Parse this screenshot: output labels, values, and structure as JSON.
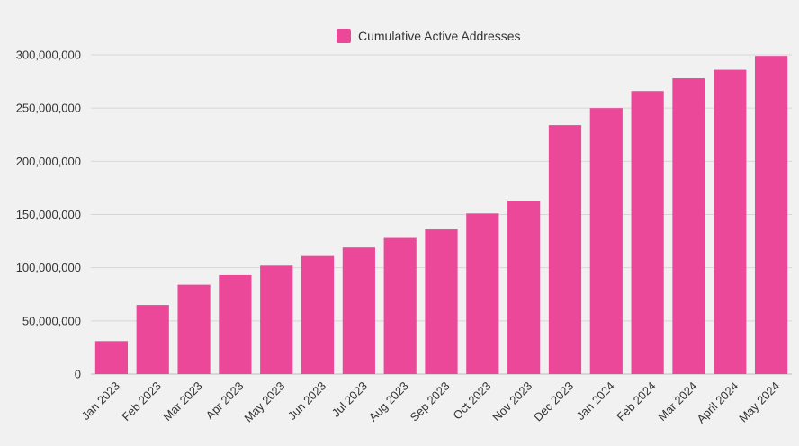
{
  "chart_data": {
    "type": "bar",
    "categories": [
      "Jan 2023",
      "Feb 2023",
      "Mar 2023",
      "Apr 2023",
      "May 2023",
      "Jun 2023",
      "Jul 2023",
      "Aug 2023",
      "Sep 2023",
      "Oct 2023",
      "Nov 2023",
      "Dec 2023",
      "Jan 2024",
      "Feb 2024",
      "Mar 2024",
      "April 2024",
      "May 2024"
    ],
    "series": [
      {
        "name": "Cumulative Active Addresses",
        "color": "#ec4899",
        "values": [
          31000000,
          65000000,
          84000000,
          93000000,
          102000000,
          111000000,
          119000000,
          128000000,
          136000000,
          151000000,
          163000000,
          234000000,
          250000000,
          266000000,
          278000000,
          286000000,
          299000000
        ]
      }
    ],
    "yticks": [
      0,
      50000000,
      100000000,
      150000000,
      200000000,
      250000000,
      300000000
    ],
    "ytick_labels": [
      "0",
      "50,000,000",
      "100,000,000",
      "150,000,000",
      "200,000,000",
      "250,000,000",
      "300,000,000"
    ],
    "ylim": [
      0,
      300000000
    ],
    "grid": true,
    "legend_position": "top-center",
    "title": "",
    "xlabel": "",
    "ylabel": ""
  }
}
